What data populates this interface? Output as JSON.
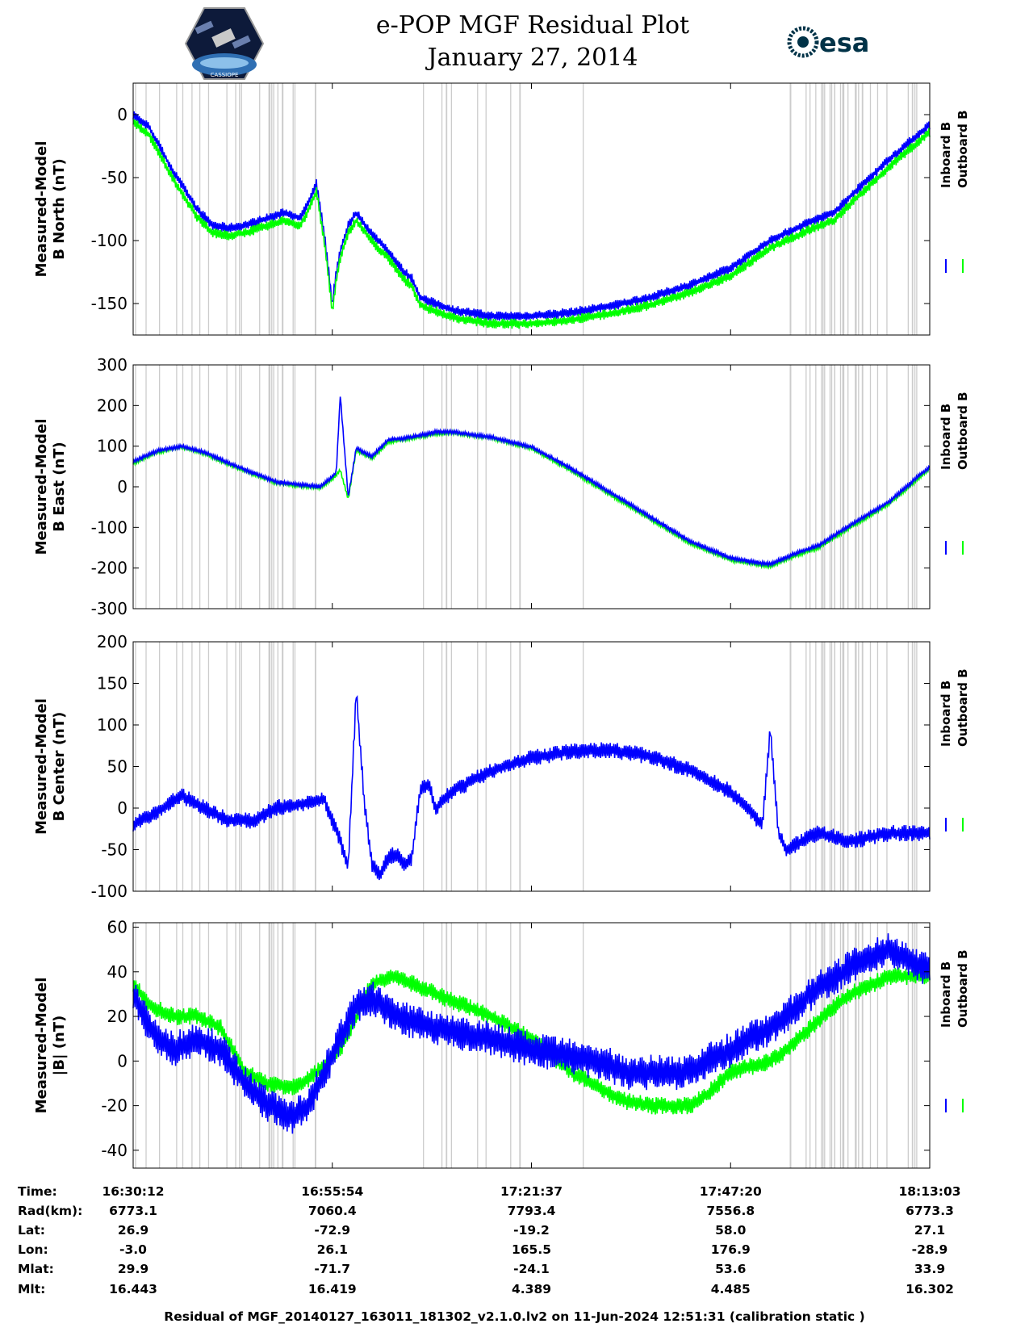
{
  "header": {
    "title_line1": "e-POP MGF Residual Plot",
    "title_line2": "January 27, 2014",
    "logo_left": "CASSIOPE",
    "logo_right": "esa"
  },
  "colors": {
    "inboard": "#0000ff",
    "outboard": "#00ff00",
    "gap": "#cccccc"
  },
  "chart_data": [
    {
      "type": "line",
      "ylabel": [
        "Measured-Model",
        "B North (nT)"
      ],
      "ylim": [
        -175,
        25
      ],
      "yticks": [
        0,
        -50,
        -100,
        -150
      ],
      "legend": [
        "Inboard B",
        "Outboard B"
      ],
      "series": [
        {
          "name": "Inboard B",
          "x": [
            0,
            0.02,
            0.05,
            0.08,
            0.1,
            0.12,
            0.14,
            0.17,
            0.19,
            0.21,
            0.22,
            0.23,
            0.24,
            0.25,
            0.255,
            0.26,
            0.27,
            0.28,
            0.3,
            0.32,
            0.34,
            0.35,
            0.36,
            0.37,
            0.38,
            0.4,
            0.45,
            0.5,
            0.55,
            0.6,
            0.65,
            0.7,
            0.75,
            0.8,
            0.85,
            0.88,
            0.9,
            0.95,
            1.0
          ],
          "y": [
            0,
            -10,
            -45,
            -75,
            -88,
            -90,
            -88,
            -82,
            -78,
            -82,
            -70,
            -55,
            -95,
            -150,
            -125,
            -108,
            -88,
            -78,
            -95,
            -108,
            -125,
            -130,
            -145,
            -148,
            -150,
            -155,
            -160,
            -160,
            -157,
            -152,
            -145,
            -135,
            -122,
            -100,
            -85,
            -78,
            -65,
            -35,
            -8
          ],
          "noise": 4
        },
        {
          "name": "Outboard B",
          "x": [
            0,
            0.02,
            0.05,
            0.08,
            0.1,
            0.12,
            0.14,
            0.17,
            0.19,
            0.21,
            0.22,
            0.23,
            0.24,
            0.25,
            0.255,
            0.26,
            0.27,
            0.28,
            0.3,
            0.32,
            0.34,
            0.35,
            0.36,
            0.37,
            0.38,
            0.4,
            0.45,
            0.5,
            0.55,
            0.6,
            0.65,
            0.7,
            0.75,
            0.8,
            0.85,
            0.88,
            0.9,
            0.95,
            1.0
          ],
          "y": [
            -6,
            -16,
            -51,
            -81,
            -94,
            -96,
            -94,
            -88,
            -84,
            -88,
            -76,
            -61,
            -101,
            -156,
            -131,
            -114,
            -94,
            -84,
            -101,
            -114,
            -131,
            -136,
            -151,
            -154,
            -156,
            -161,
            -166,
            -166,
            -163,
            -158,
            -151,
            -141,
            -128,
            -106,
            -91,
            -84,
            -71,
            -41,
            -14
          ],
          "noise": 4
        }
      ]
    },
    {
      "type": "line",
      "ylabel": [
        "Measured-Model",
        "B East (nT)"
      ],
      "ylim": [
        -300,
        300
      ],
      "yticks": [
        300,
        200,
        100,
        0,
        -100,
        -200,
        -300
      ],
      "legend": [
        "Inboard B",
        "Outboard B"
      ],
      "series": [
        {
          "name": "Outboard B",
          "x": [
            0,
            0.03,
            0.06,
            0.09,
            0.12,
            0.15,
            0.18,
            0.21,
            0.235,
            0.25,
            0.255,
            0.26,
            0.27,
            0.28,
            0.3,
            0.32,
            0.35,
            0.38,
            0.4,
            0.45,
            0.5,
            0.55,
            0.6,
            0.65,
            0.7,
            0.75,
            0.78,
            0.8,
            0.83,
            0.86,
            0.9,
            0.95,
            1.0
          ],
          "y": [
            58,
            85,
            98,
            82,
            55,
            32,
            10,
            2,
            -2,
            20,
            30,
            40,
            -30,
            90,
            70,
            110,
            120,
            130,
            133,
            120,
            95,
            40,
            -20,
            -80,
            -140,
            -180,
            -190,
            -195,
            -170,
            -150,
            -100,
            -40,
            45
          ],
          "noise": 5
        },
        {
          "name": "Inboard B",
          "x": [
            0,
            0.03,
            0.06,
            0.09,
            0.12,
            0.15,
            0.18,
            0.21,
            0.235,
            0.25,
            0.255,
            0.26,
            0.27,
            0.28,
            0.3,
            0.32,
            0.35,
            0.38,
            0.4,
            0.45,
            0.5,
            0.55,
            0.6,
            0.65,
            0.7,
            0.75,
            0.78,
            0.8,
            0.83,
            0.86,
            0.9,
            0.95,
            1.0
          ],
          "y": [
            62,
            88,
            100,
            85,
            58,
            35,
            12,
            5,
            0,
            25,
            35,
            225,
            -25,
            95,
            75,
            115,
            122,
            135,
            135,
            122,
            98,
            45,
            -15,
            -75,
            -135,
            -175,
            -186,
            -190,
            -165,
            -145,
            -95,
            -35,
            50
          ],
          "noise": 5
        }
      ]
    },
    {
      "type": "line",
      "ylabel": [
        "Measured-Model",
        "B Center (nT)"
      ],
      "ylim": [
        -100,
        200
      ],
      "yticks": [
        200,
        150,
        100,
        50,
        0,
        -50,
        -100
      ],
      "legend": [
        "Inboard B",
        "Outboard B"
      ],
      "series": [
        {
          "name": "Inboard B",
          "x": [
            0,
            0.03,
            0.06,
            0.09,
            0.12,
            0.15,
            0.18,
            0.21,
            0.24,
            0.26,
            0.27,
            0.28,
            0.29,
            0.3,
            0.31,
            0.32,
            0.33,
            0.34,
            0.35,
            0.36,
            0.37,
            0.38,
            0.4,
            0.45,
            0.5,
            0.55,
            0.6,
            0.65,
            0.7,
            0.75,
            0.79,
            0.8,
            0.81,
            0.82,
            0.84,
            0.86,
            0.9,
            0.95,
            1.0
          ],
          "y": [
            -20,
            -5,
            15,
            0,
            -15,
            -15,
            0,
            5,
            10,
            -40,
            -70,
            140,
            10,
            -70,
            -80,
            -60,
            -55,
            -70,
            -60,
            20,
            30,
            0,
            20,
            45,
            60,
            68,
            70,
            62,
            45,
            20,
            -20,
            95,
            -30,
            -50,
            -40,
            -30,
            -40,
            -30,
            -30
          ],
          "noise": 10
        }
      ]
    },
    {
      "type": "line",
      "ylabel": [
        "Measured-Model",
        "|B| (nT)"
      ],
      "ylim": [
        -48,
        62
      ],
      "yticks": [
        60,
        40,
        20,
        0,
        -20,
        -40
      ],
      "legend": [
        "Inboard B",
        "Outboard B"
      ],
      "series": [
        {
          "name": "Outboard B",
          "x": [
            0,
            0.02,
            0.05,
            0.08,
            0.11,
            0.14,
            0.17,
            0.2,
            0.22,
            0.24,
            0.26,
            0.28,
            0.3,
            0.33,
            0.38,
            0.45,
            0.5,
            0.55,
            0.6,
            0.62,
            0.65,
            0.7,
            0.72,
            0.75,
            0.8,
            0.82,
            0.85,
            0.9,
            0.95,
            1.0
          ],
          "y": [
            35,
            25,
            20,
            20,
            15,
            -5,
            -10,
            -12,
            -8,
            -2,
            5,
            20,
            35,
            38,
            30,
            20,
            10,
            -5,
            -15,
            -18,
            -20,
            -20,
            -15,
            -5,
            0,
            5,
            15,
            30,
            38,
            38
          ],
          "noise": 4
        },
        {
          "name": "Inboard B",
          "x": [
            0,
            0.02,
            0.05,
            0.08,
            0.11,
            0.14,
            0.17,
            0.2,
            0.22,
            0.24,
            0.26,
            0.28,
            0.3,
            0.33,
            0.38,
            0.45,
            0.5,
            0.55,
            0.6,
            0.62,
            0.65,
            0.7,
            0.72,
            0.75,
            0.8,
            0.82,
            0.85,
            0.9,
            0.95,
            1.0
          ],
          "y": [
            30,
            15,
            5,
            10,
            5,
            -10,
            -20,
            -25,
            -20,
            -5,
            10,
            25,
            28,
            20,
            15,
            10,
            5,
            2,
            -2,
            -5,
            -5,
            -5,
            0,
            5,
            15,
            20,
            30,
            42,
            50,
            40
          ],
          "noise": 8
        }
      ]
    }
  ],
  "x_axis": {
    "ticks": [
      "16:30:12",
      "16:55:54",
      "17:21:37",
      "17:47:20",
      "18:13:03"
    ],
    "table": [
      {
        "label": "Time:",
        "values": [
          "16:30:12",
          "16:55:54",
          "17:21:37",
          "17:47:20",
          "18:13:03"
        ]
      },
      {
        "label": "Rad(km):",
        "values": [
          "6773.1",
          "7060.4",
          "7793.4",
          "7556.8",
          "6773.3"
        ]
      },
      {
        "label": "Lat:",
        "values": [
          "26.9",
          "-72.9",
          "-19.2",
          "58.0",
          "27.1"
        ]
      },
      {
        "label": "Lon:",
        "values": [
          "-3.0",
          "26.1",
          "165.5",
          "176.9",
          "-28.9"
        ]
      },
      {
        "label": "Mlat:",
        "values": [
          "29.9",
          "-71.7",
          "-24.1",
          "53.6",
          "33.9"
        ]
      },
      {
        "label": "Mlt:",
        "values": [
          "16.443",
          "16.419",
          "4.389",
          "4.485",
          "16.302"
        ]
      }
    ]
  },
  "footer": "Residual of MGF_20140127_163011_181302_v2.1.0.lv2 on 11-Jun-2024 12:51:31 (calibration static )"
}
